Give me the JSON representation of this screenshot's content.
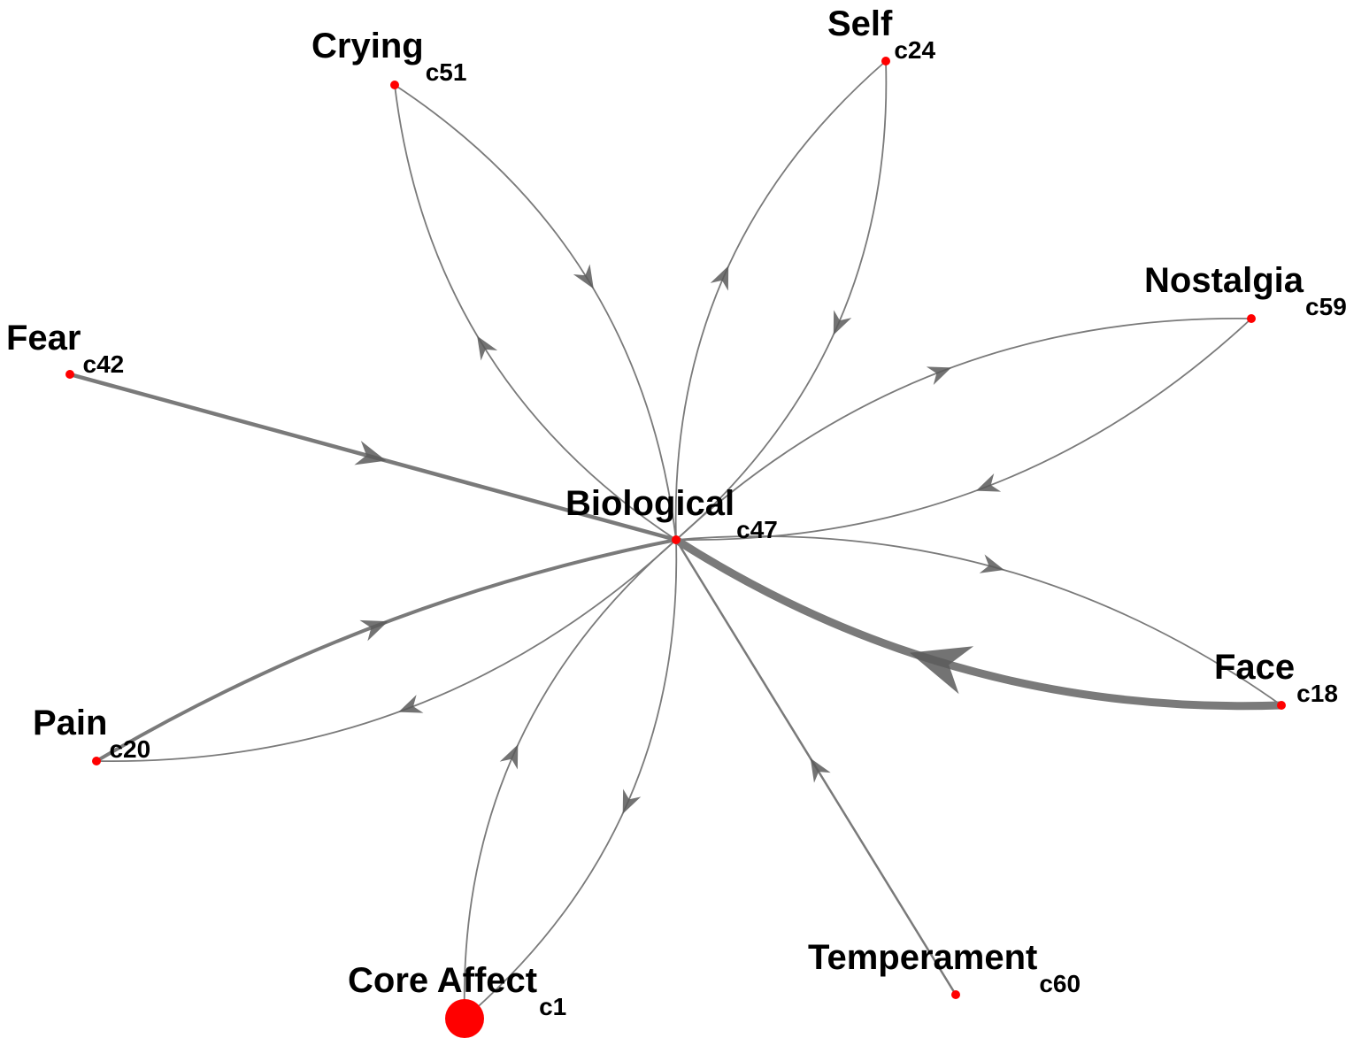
{
  "graph": {
    "center_node": "c47",
    "nodes": [
      {
        "id": "c47",
        "name": "Biological",
        "code": "c47"
      },
      {
        "id": "c51",
        "name": "Crying",
        "code": "c51"
      },
      {
        "id": "c24",
        "name": "Self",
        "code": "c24"
      },
      {
        "id": "c59",
        "name": "Nostalgia",
        "code": "c59"
      },
      {
        "id": "c42",
        "name": "Fear",
        "code": "c42"
      },
      {
        "id": "c18",
        "name": "Face",
        "code": "c18"
      },
      {
        "id": "c20",
        "name": "Pain",
        "code": "c20"
      },
      {
        "id": "c1",
        "name": "Core Affect",
        "code": "c1"
      },
      {
        "id": "c60",
        "name": "Temperament",
        "code": "c60"
      }
    ],
    "edges": [
      {
        "from": "c51",
        "to": "c47"
      },
      {
        "from": "c47",
        "to": "c51"
      },
      {
        "from": "c24",
        "to": "c47"
      },
      {
        "from": "c47",
        "to": "c24"
      },
      {
        "from": "c59",
        "to": "c47"
      },
      {
        "from": "c47",
        "to": "c59"
      },
      {
        "from": "c42",
        "to": "c47"
      },
      {
        "from": "c18",
        "to": "c47"
      },
      {
        "from": "c47",
        "to": "c18"
      },
      {
        "from": "c47",
        "to": "c20"
      },
      {
        "from": "c20",
        "to": "c47"
      },
      {
        "from": "c47",
        "to": "c1"
      },
      {
        "from": "c1",
        "to": "c47"
      },
      {
        "from": "c60",
        "to": "c47"
      }
    ],
    "colors": {
      "node": "#ff0000",
      "edge": "#7a7a7a",
      "arrow": "#5a5a5a",
      "label": "#000000"
    }
  }
}
